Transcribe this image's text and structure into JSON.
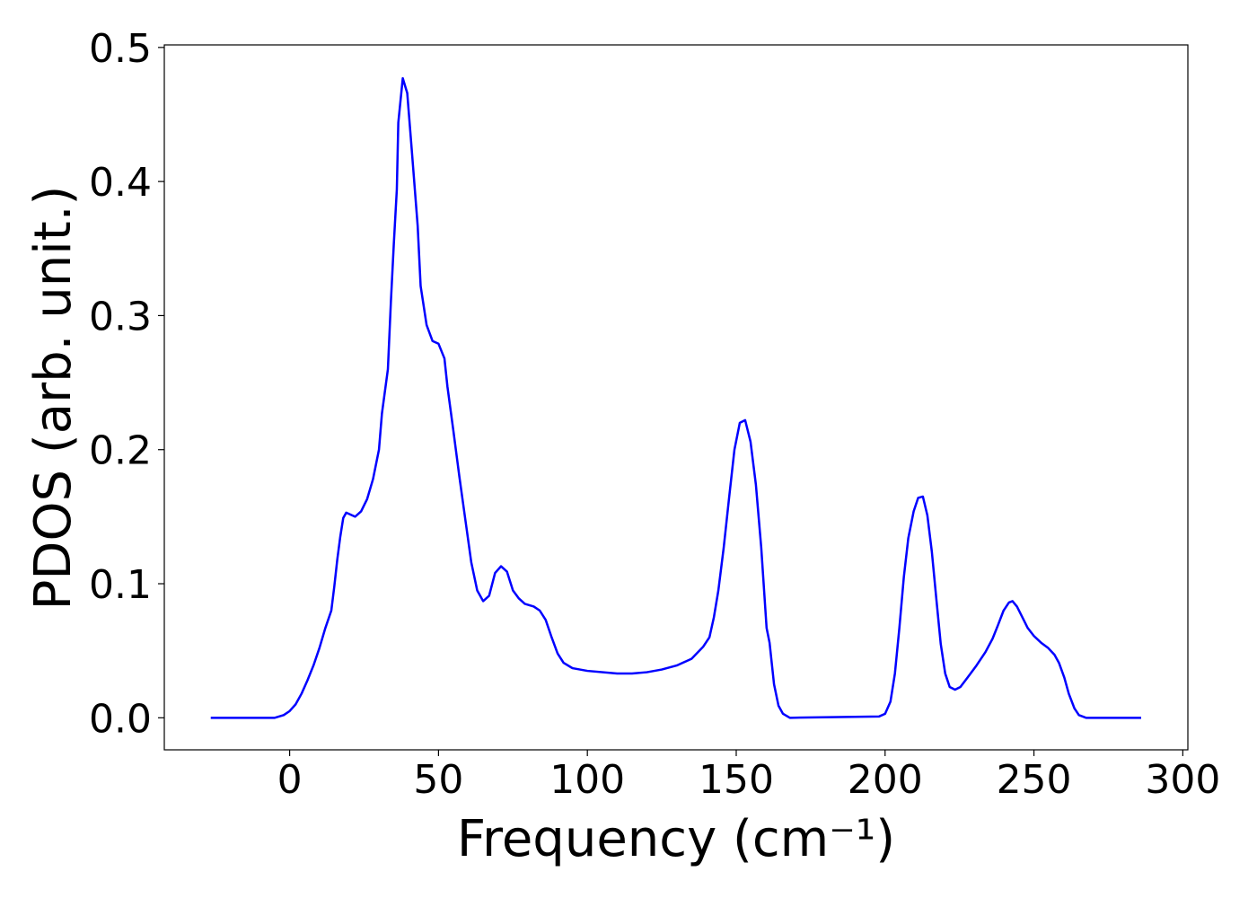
{
  "chart_data": {
    "type": "line",
    "xlabel": "Frequency (cm⁻¹)",
    "ylabel": "PDOS (arb. unit.)",
    "xlim": [
      -42.1,
      301.7
    ],
    "ylim": [
      -0.0239,
      0.5019
    ],
    "xticks": [
      0,
      50,
      100,
      150,
      200,
      250,
      300
    ],
    "yticks": [
      {
        "value": 0,
        "label": "0.0"
      },
      0.1,
      0.2,
      0.3,
      0.4,
      0.5
    ],
    "grid": false,
    "series": [
      {
        "color": "#0000ff",
        "x": [
          -26.5,
          -5,
          -2,
          0,
          2,
          4,
          6,
          8,
          10,
          12,
          14,
          15,
          16,
          17,
          18,
          19,
          22,
          24,
          26,
          28,
          30,
          31,
          33,
          34,
          35,
          36,
          36.5,
          38,
          39.5,
          41,
          43,
          44,
          46,
          48,
          50,
          52,
          53,
          55,
          57,
          59,
          61,
          63,
          65,
          67,
          69,
          71,
          73,
          75,
          77,
          79,
          82,
          84,
          86,
          88,
          90,
          92,
          95,
          100,
          110,
          115,
          120,
          125,
          130,
          135,
          138.9,
          141,
          142.5,
          144,
          145.8,
          147.6,
          149.4,
          151.2,
          153,
          154.8,
          156.6,
          158.4,
          160.2,
          161.2,
          162.7,
          164.2,
          165.7,
          168,
          198,
          200,
          201.8,
          203.3,
          204.8,
          206.3,
          207.8,
          209.6,
          211.1,
          212.7,
          214.2,
          215.7,
          217.2,
          218.7,
          220.2,
          221.7,
          223.5,
          225.3,
          227.7,
          230.7,
          233.7,
          236.1,
          237.9,
          239.8,
          241.6,
          242.8,
          244.3,
          246.1,
          247.9,
          250,
          252.4,
          254.8,
          256.9,
          258.4,
          260.2,
          261.7,
          263.6,
          265.1,
          267.5,
          286
        ],
        "values": [
          0,
          0,
          0.002,
          0.005,
          0.01,
          0.018,
          0.028,
          0.039,
          0.052,
          0.067,
          0.08,
          0.098,
          0.118,
          0.135,
          0.149,
          0.153,
          0.15,
          0.154,
          0.163,
          0.178,
          0.2,
          0.227,
          0.26,
          0.31,
          0.354,
          0.394,
          0.444,
          0.477,
          0.466,
          0.424,
          0.367,
          0.322,
          0.293,
          0.281,
          0.279,
          0.268,
          0.247,
          0.214,
          0.18,
          0.148,
          0.116,
          0.095,
          0.087,
          0.091,
          0.108,
          0.113,
          0.109,
          0.095,
          0.089,
          0.085,
          0.083,
          0.08,
          0.073,
          0.06,
          0.048,
          0.041,
          0.037,
          0.035,
          0.033,
          0.033,
          0.034,
          0.036,
          0.039,
          0.044,
          0.053,
          0.06,
          0.075,
          0.095,
          0.127,
          0.164,
          0.2,
          0.22,
          0.222,
          0.206,
          0.174,
          0.127,
          0.067,
          0.056,
          0.025,
          0.009,
          0.003,
          0,
          0.001,
          0.003,
          0.012,
          0.033,
          0.067,
          0.105,
          0.134,
          0.154,
          0.164,
          0.165,
          0.151,
          0.124,
          0.089,
          0.055,
          0.033,
          0.023,
          0.021,
          0.023,
          0.03,
          0.039,
          0.049,
          0.059,
          0.069,
          0.08,
          0.086,
          0.087,
          0.083,
          0.075,
          0.067,
          0.061,
          0.056,
          0.052,
          0.047,
          0.041,
          0.03,
          0.018,
          0.007,
          0.002,
          0,
          0
        ]
      }
    ]
  }
}
